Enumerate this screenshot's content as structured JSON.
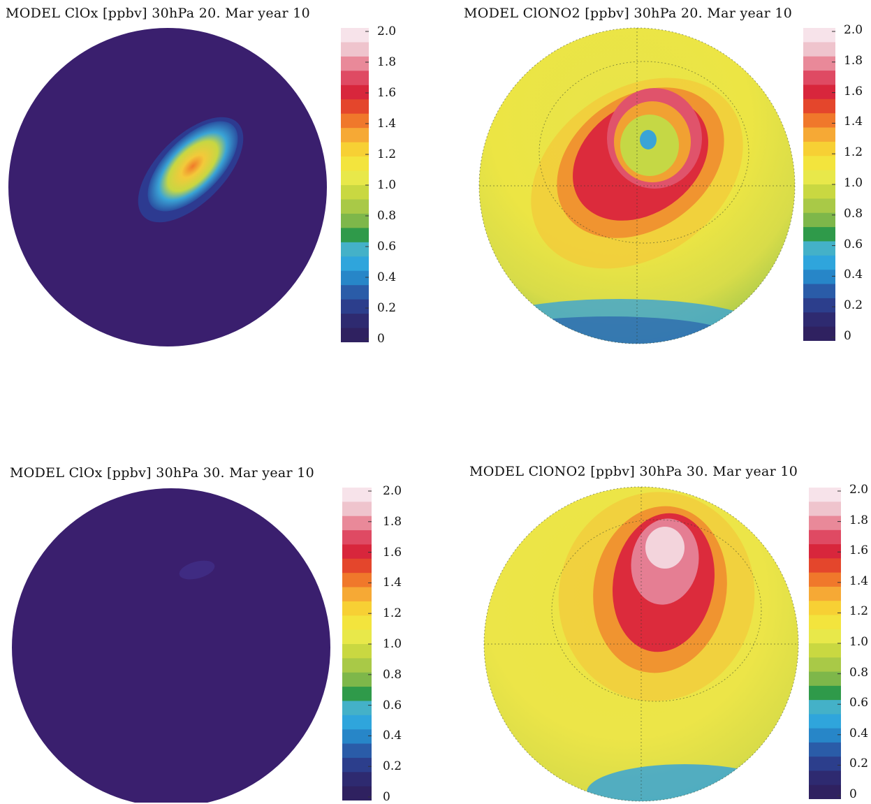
{
  "colorbar": {
    "ticks": [
      "2.0",
      "1.8",
      "1.6",
      "1.4",
      "1.2",
      "1.0",
      "0.8",
      "0.6",
      "0.4",
      "0.2",
      "0"
    ],
    "colors": [
      "#f7e3ea",
      "#efc4cd",
      "#e98999",
      "#df4a63",
      "#d8263c",
      "#e4462c",
      "#f0782b",
      "#f6a935",
      "#f7d034",
      "#f3e43d",
      "#e8e84a",
      "#c9d841",
      "#a9c947",
      "#7eb74a",
      "#2f9a4a",
      "#44b1c8",
      "#2fa5dc",
      "#2786c8",
      "#2a5ca8",
      "#2c3e8c",
      "#2e2a70",
      "#2f2160"
    ]
  },
  "panels": [
    {
      "id": "p1",
      "title": "MODEL ClOx [ppbv] 30hPa 20. Mar year 10",
      "field": "ClOx",
      "date": "20. Mar"
    },
    {
      "id": "p2",
      "title": "MODEL ClONO2 [ppbv] 30hPa 20. Mar year 10",
      "field": "ClONO2",
      "date": "20. Mar"
    },
    {
      "id": "p3",
      "title": "MODEL ClOx [ppbv] 30hPa 30. Mar year 10",
      "field": "ClOx",
      "date": "30. Mar"
    },
    {
      "id": "p4",
      "title": "MODEL ClONO2 [ppbv] 30hPa 30. Mar year 10",
      "field": "ClONO2",
      "date": "30. Mar"
    }
  ]
}
